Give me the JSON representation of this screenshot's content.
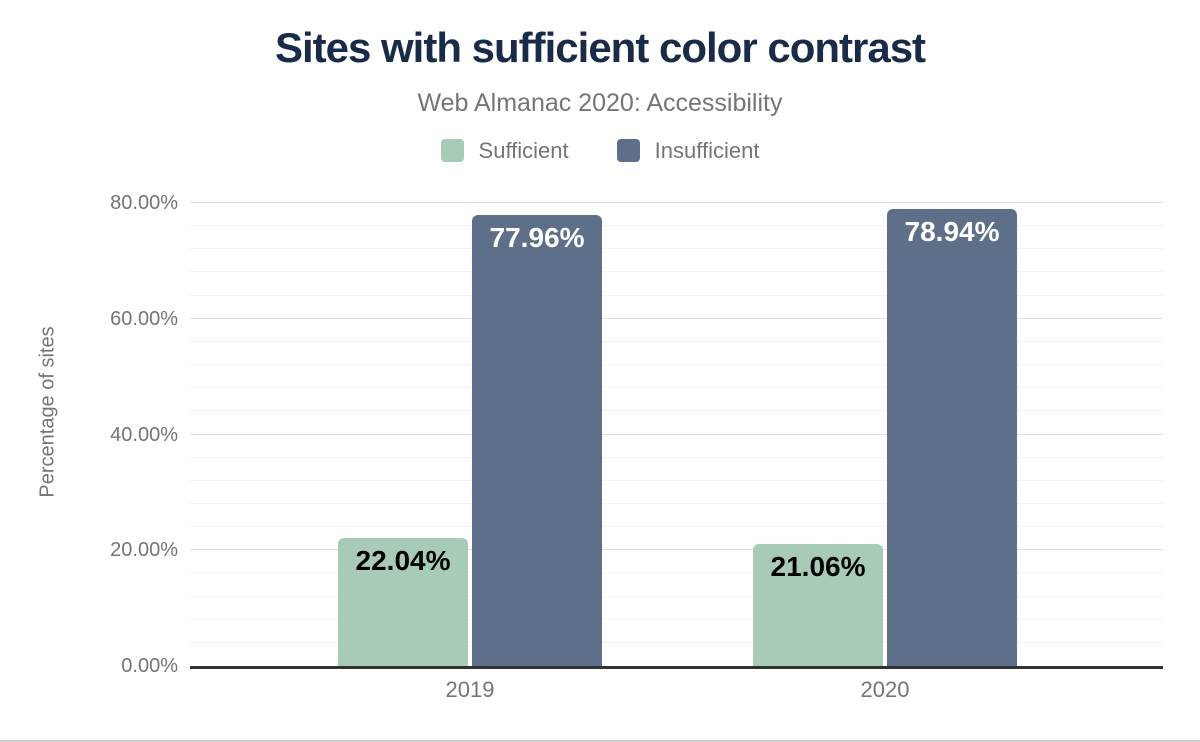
{
  "chart": {
    "title": "Sites with sufficient color contrast",
    "subtitle": "Web Almanac 2020: Accessibility"
  },
  "colors": {
    "title_text": "#1a2b49",
    "muted_text": "#757575",
    "axis_line": "#333333",
    "gridline_major": "#e0e0e0",
    "gridline_minor": "#f2f2f2",
    "sufficient_green": "#a7cbb7",
    "insufficient_blue": "#5e7089"
  },
  "chart_data": {
    "type": "bar",
    "title": "Sites with sufficient color contrast",
    "subtitle": "Web Almanac 2020: Accessibility",
    "categories": [
      "2019",
      "2020"
    ],
    "series": [
      {
        "name": "Sufficient",
        "color": "#a7cbb7",
        "label_color": "#000000",
        "values": [
          22.04,
          21.06
        ],
        "labels": [
          "22.04%",
          "21.06%"
        ]
      },
      {
        "name": "Insufficient",
        "color": "#5e7089",
        "label_color": "#ffffff",
        "values": [
          77.96,
          78.94
        ],
        "labels": [
          "77.96%",
          "78.94%"
        ]
      }
    ],
    "xlabel": "",
    "ylabel": "Percentage of sites",
    "ylim": [
      0,
      80
    ],
    "y_major_step": 20,
    "y_minor_step": 4,
    "y_tick_labels": [
      "0.00%",
      "20.00%",
      "40.00%",
      "60.00%",
      "80.00%"
    ],
    "grid": true,
    "legend_position": "top"
  }
}
